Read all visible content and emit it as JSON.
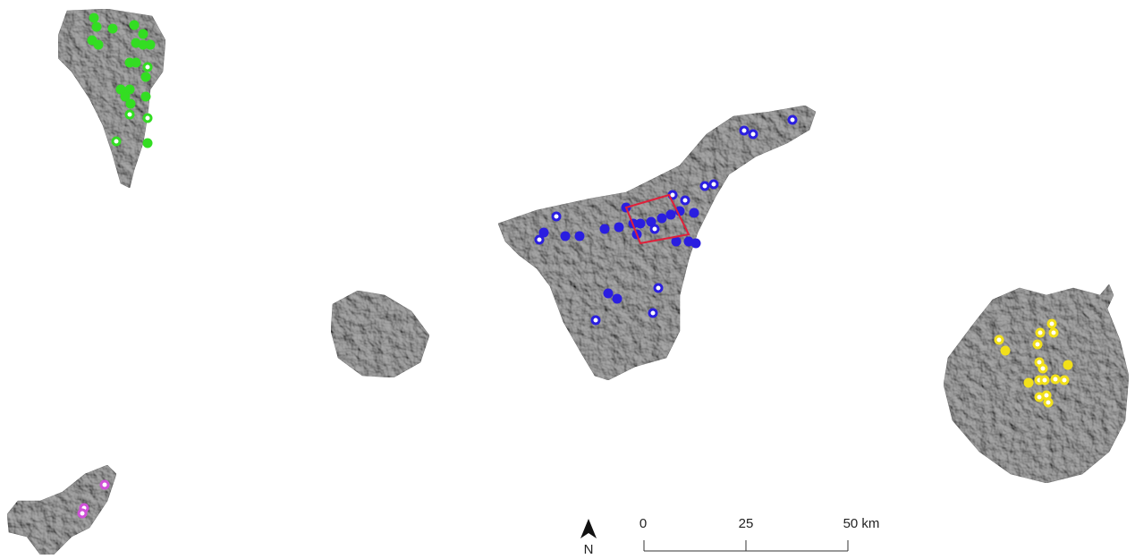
{
  "north_arrow": {
    "label": "N"
  },
  "scale_bar": {
    "labels": [
      "0",
      "25",
      "50 km"
    ]
  }
}
